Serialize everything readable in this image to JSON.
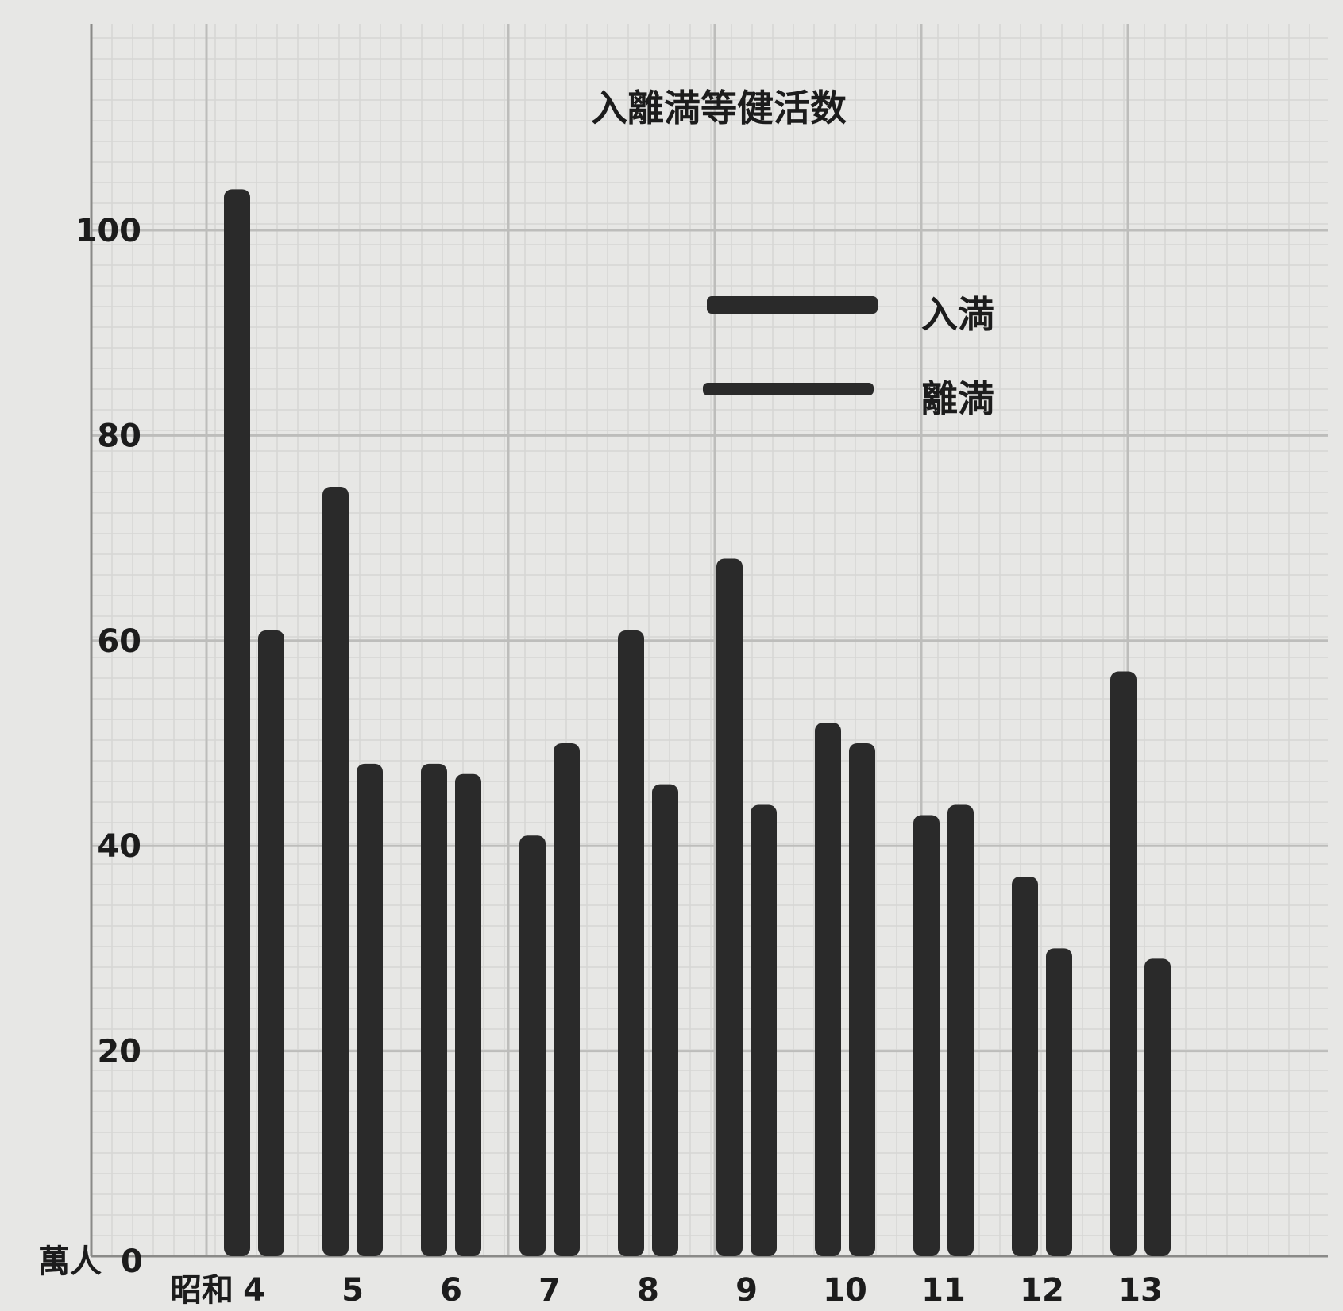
{
  "chart_data": {
    "type": "bar",
    "title": "入離満等健活数",
    "y_unit_label": "萬人",
    "x_prefix_label": "昭和",
    "categories": [
      "4",
      "5",
      "6",
      "7",
      "8",
      "9",
      "10",
      "11",
      "12",
      "13"
    ],
    "series": [
      {
        "name": "入満",
        "values": [
          104,
          75,
          48,
          41,
          61,
          68,
          52,
          43,
          37,
          57
        ]
      },
      {
        "name": "離満",
        "values": [
          61,
          48,
          47,
          50,
          46,
          44,
          50,
          44,
          30,
          29
        ]
      }
    ],
    "yticks": [
      0,
      20,
      40,
      60,
      80,
      100
    ],
    "ytick_labels": [
      "0",
      "20",
      "40",
      "60",
      "80",
      "100"
    ],
    "ylim": [
      0,
      100
    ],
    "grid": true,
    "legend_placement": "top-right",
    "colors": {
      "bar": "#2a2a2a",
      "grid_major": "#bdbdbb",
      "grid_minor": "#d6d6d4",
      "background": "#e7e7e5"
    }
  }
}
